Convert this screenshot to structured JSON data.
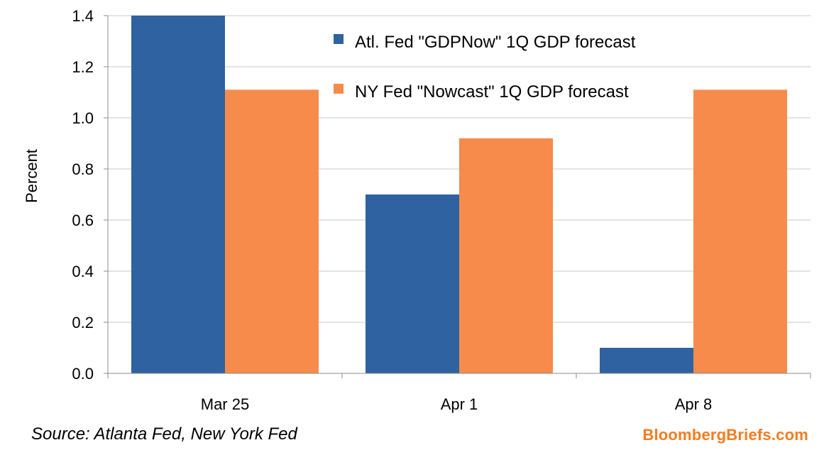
{
  "chart_data": {
    "type": "bar",
    "categories": [
      "Mar 25",
      "Apr 1",
      "Apr 8"
    ],
    "series": [
      {
        "name": "Atl. Fed \"GDPNow\" 1Q GDP forecast",
        "values": [
          1.4,
          0.7,
          0.1
        ],
        "color": "#2e62a0"
      },
      {
        "name": "NY Fed \"Nowcast\" 1Q GDP forecast",
        "values": [
          1.11,
          0.92,
          1.11
        ],
        "color": "#f68b4b"
      }
    ],
    "ylabel": "Percent",
    "ylim": [
      0,
      1.4
    ],
    "yticks": [
      "0.0",
      "0.2",
      "0.4",
      "0.6",
      "0.8",
      "1.0",
      "1.2",
      "1.4"
    ],
    "grid": true,
    "legend_position": "top-right"
  },
  "footer": {
    "source": "Source: Atlanta Fed, New York Fed",
    "brand": "BloombergBriefs.com"
  }
}
